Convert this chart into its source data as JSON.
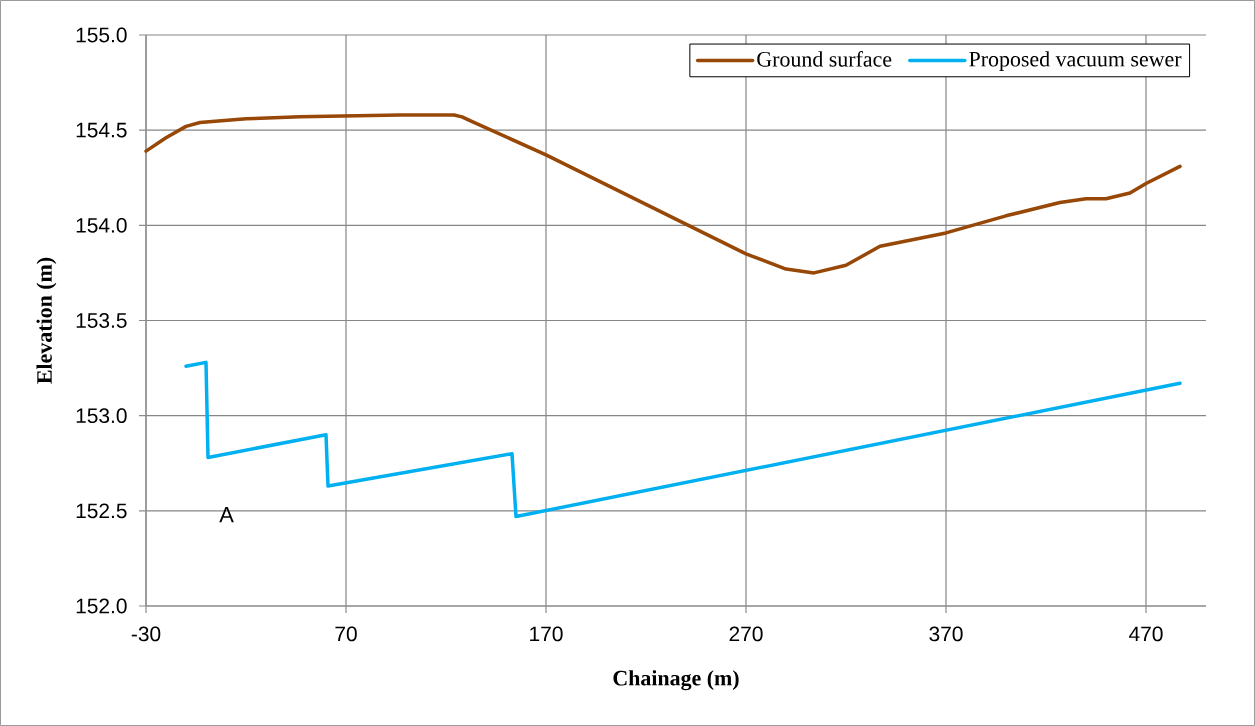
{
  "chart_data": {
    "type": "line",
    "xlabel": "Chainage (m)",
    "ylabel": "Elevation (m)",
    "xlim": [
      -30,
      500
    ],
    "ylim": [
      152,
      155
    ],
    "xticks": [
      -30,
      70,
      170,
      270,
      370,
      470
    ],
    "yticks": [
      {
        "value": 152,
        "label": "152.0"
      },
      {
        "value": 152.5,
        "label": "152.5"
      },
      {
        "value": 153,
        "label": "153.0"
      },
      {
        "value": 153.5,
        "label": "153.5"
      },
      {
        "value": 154,
        "label": "154.0"
      },
      {
        "value": 154.5,
        "label": "154.5"
      },
      {
        "value": 155,
        "label": "155.0"
      }
    ],
    "grid": true,
    "legend": "top right",
    "marker": "none",
    "line_style": "solid",
    "series": [
      {
        "name": "Ground surface",
        "color": "#974706",
        "x": [
          -30,
          -20,
          -10,
          -3,
          20,
          47,
          97,
          124,
          128,
          132,
          170,
          220,
          270,
          290,
          304,
          320,
          337,
          370,
          400,
          427,
          440,
          450,
          462,
          470,
          487
        ],
        "values": [
          154.39,
          154.46,
          154.52,
          154.54,
          154.56,
          154.57,
          154.58,
          154.58,
          154.57,
          154.55,
          154.37,
          154.11,
          153.85,
          153.77,
          153.75,
          153.79,
          153.89,
          153.96,
          154.05,
          154.12,
          154.14,
          154.14,
          154.17,
          154.22,
          154.31
        ]
      },
      {
        "name": "Proposed vacuum sewer",
        "color": "#00b0f0",
        "x": [
          -10,
          0,
          1,
          60,
          61,
          153,
          155,
          487
        ],
        "values": [
          153.26,
          153.28,
          152.78,
          152.9,
          152.63,
          152.8,
          152.47,
          153.17
        ]
      }
    ],
    "annotations": [
      "A"
    ]
  }
}
